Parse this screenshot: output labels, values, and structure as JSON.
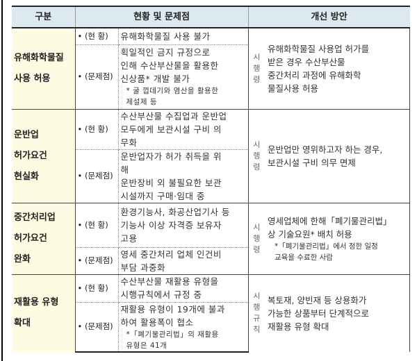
{
  "header": {
    "category": "구분",
    "status": "현황 및 문제점",
    "improvement": "개선 방안"
  },
  "labels": {
    "current": "• (현 황)",
    "problem": "• (문제점)"
  },
  "rows": [
    {
      "category": [
        "유해화학물질",
        "사용 허용"
      ],
      "current": [
        "유해화학물질 사용 불가"
      ],
      "problem": [
        "획일적인 금지 규정으로",
        "인해 수산부산물을 활용한",
        "신상품* 개발 불가"
      ],
      "problem_note": [
        "* 굴 껍데기와 염산을 활용한",
        "제설제 등"
      ],
      "law": "시행령",
      "improvement": [
        "유해화학물질 사용업 허가를",
        "받은 경우 수산부산물",
        "중간처리 과정에 유해화학",
        "물질사용 허용"
      ],
      "improvement_note": []
    },
    {
      "category": [
        "운반업",
        "허가요건",
        "현실화"
      ],
      "current": [
        "수산부산물 수집업과 운반업",
        "모두에게 보관시설 구비 의",
        "무화"
      ],
      "problem": [
        "운반업자가 허가 취득을 위",
        "해",
        "운반장비 외 불필요한 보관",
        "시설까지 구매·임대 중"
      ],
      "problem_note": [],
      "law": "시행령",
      "improvement": [
        "운반업만 영위하고자 하는 경우,",
        "보관시설 구비 의무 면제"
      ],
      "improvement_note": []
    },
    {
      "category": [
        "중간처리업",
        "허가요건",
        "완화"
      ],
      "current": [
        "환경기능사, 화공산업기사 등",
        "기능사 이상 자격증 보유자",
        "고용"
      ],
      "problem": [
        "영세 중간처리 업체 인건비",
        "부담 과중화"
      ],
      "problem_note": [],
      "law": "시행령",
      "improvement": [
        "영세업체에 한해「폐기물관리법」",
        "상 기술요원* 배치 허용"
      ],
      "improvement_note": [
        "*「폐기물관리법」에서 정한 일정",
        "교육을 수료한 사람"
      ]
    },
    {
      "category": [
        "재활용 유형",
        "확대"
      ],
      "current": [
        "수산부산물 재활용 유형을",
        "시행규칙에서 규정 중"
      ],
      "problem": [
        "재활용 유형이 19개에 불과",
        "하여 활용폭이 협소"
      ],
      "problem_note": [
        "*「폐기물관리법」의 재활용",
        "유형은 41개"
      ],
      "law": "시행규칙",
      "improvement": [
        "복토재, 양빈재 등 상용화가",
        "가능한 상품부터 단계적으로",
        "재활용 유형 확대"
      ],
      "improvement_note": []
    }
  ]
}
